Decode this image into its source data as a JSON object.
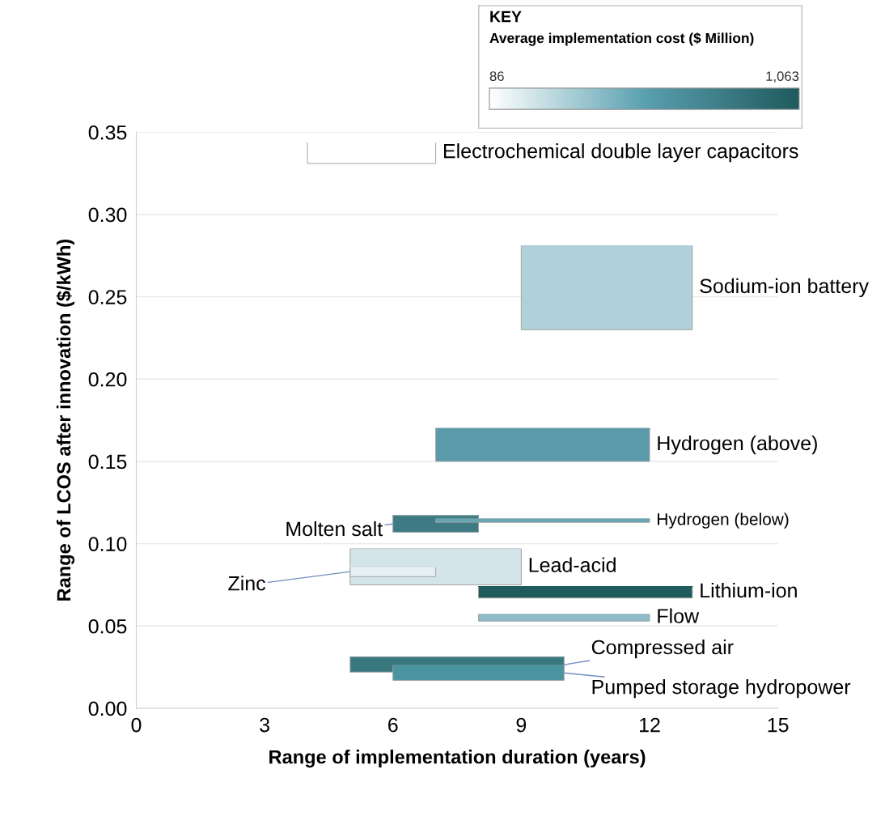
{
  "chart_data": {
    "type": "line",
    "xlabel": "Range of implementation duration (years)",
    "ylabel": "Range of LCOS after innovation ($/kWh)",
    "xlim": [
      0,
      15
    ],
    "xticks": [
      0,
      3,
      6,
      9,
      12,
      15
    ],
    "ylim": [
      0,
      0.35
    ],
    "yticks": [
      {
        "value": 0,
        "label": "0.00"
      },
      {
        "value": 0.05,
        "label": "0.05"
      },
      {
        "value": 0.1,
        "label": "0.10"
      },
      {
        "value": 0.15,
        "label": "0.15"
      },
      {
        "value": 0.2,
        "label": "0.20"
      },
      {
        "value": 0.25,
        "label": "0.25"
      },
      {
        "value": 0.3,
        "label": "0.30"
      },
      {
        "value": 0.35,
        "label": "0.35"
      }
    ],
    "grid": "y",
    "clabel": "Average implementation cost ($ Million)",
    "clim": [
      86,
      1063
    ],
    "cticks": [
      86,
      {
        "value": 1063,
        "label": "1,063"
      }
    ],
    "annotations": [
      "KEY"
    ],
    "series": [
      {
        "name": "Electrochemical double layer capacitors",
        "color": "#ffffff",
        "x": [
          4,
          7
        ],
        "values": [
          0.344,
          0.344
        ],
        "upper": [
          0.344,
          0.344
        ],
        "lower": [
          0.331,
          0.331
        ]
      },
      {
        "name": "Sodium-ion battery",
        "color": "#b0d0da",
        "x": [
          9,
          13
        ],
        "values": [
          0.281,
          0.281
        ],
        "upper": [
          0.281,
          0.281
        ],
        "lower": [
          0.23,
          0.23
        ]
      },
      {
        "name": "Hydrogen (above)",
        "color": "#5a9aaa",
        "x": [
          7,
          12
        ],
        "values": [
          0.17,
          0.17
        ],
        "upper": [
          0.17,
          0.17
        ],
        "lower": [
          0.15,
          0.15
        ]
      },
      {
        "name": "Molten salt",
        "color": "#3d7a84",
        "x": [
          6,
          8
        ],
        "values": [
          0.117,
          0.117
        ],
        "upper": [
          0.117,
          0.117
        ],
        "lower": [
          0.107,
          0.107
        ]
      },
      {
        "name": "Hydrogen (below)",
        "color": "#66a6b4",
        "x": [
          7,
          12
        ],
        "values": [
          0.115,
          0.115
        ],
        "upper": [
          0.115,
          0.115
        ],
        "lower": [
          0.113,
          0.113
        ]
      },
      {
        "name": "Lead-acid",
        "color": "#d4e5ea",
        "x": [
          5,
          9
        ],
        "values": [
          0.097,
          0.097
        ],
        "upper": [
          0.097,
          0.097
        ],
        "lower": [
          0.075,
          0.075
        ]
      },
      {
        "name": "Zinc",
        "color": "#e6f0f3",
        "x": [
          5,
          7
        ],
        "values": [
          0.086,
          0.086
        ],
        "upper": [
          0.086,
          0.086
        ],
        "lower": [
          0.08,
          0.08
        ]
      },
      {
        "name": "Lithium-ion",
        "color": "#1f5a5d",
        "x": [
          8,
          13
        ],
        "values": [
          0.074,
          0.074
        ],
        "upper": [
          0.074,
          0.074
        ],
        "lower": [
          0.067,
          0.067
        ]
      },
      {
        "name": "Flow",
        "color": "#8dbbc8",
        "x": [
          8,
          12
        ],
        "values": [
          0.057,
          0.057
        ],
        "upper": [
          0.057,
          0.057
        ],
        "lower": [
          0.053,
          0.053
        ]
      },
      {
        "name": "Compressed air",
        "color": "#3a7880",
        "x": [
          5,
          10
        ],
        "values": [
          0.031,
          0.031
        ],
        "upper": [
          0.031,
          0.031
        ],
        "lower": [
          0.022,
          0.022
        ]
      },
      {
        "name": "Pumped storage hydropower",
        "color": "#4a93a0",
        "x": [
          6,
          10
        ],
        "values": [
          0.026,
          0.026
        ],
        "upper": [
          0.026,
          0.026
        ],
        "lower": [
          0.017,
          0.017
        ]
      }
    ]
  }
}
